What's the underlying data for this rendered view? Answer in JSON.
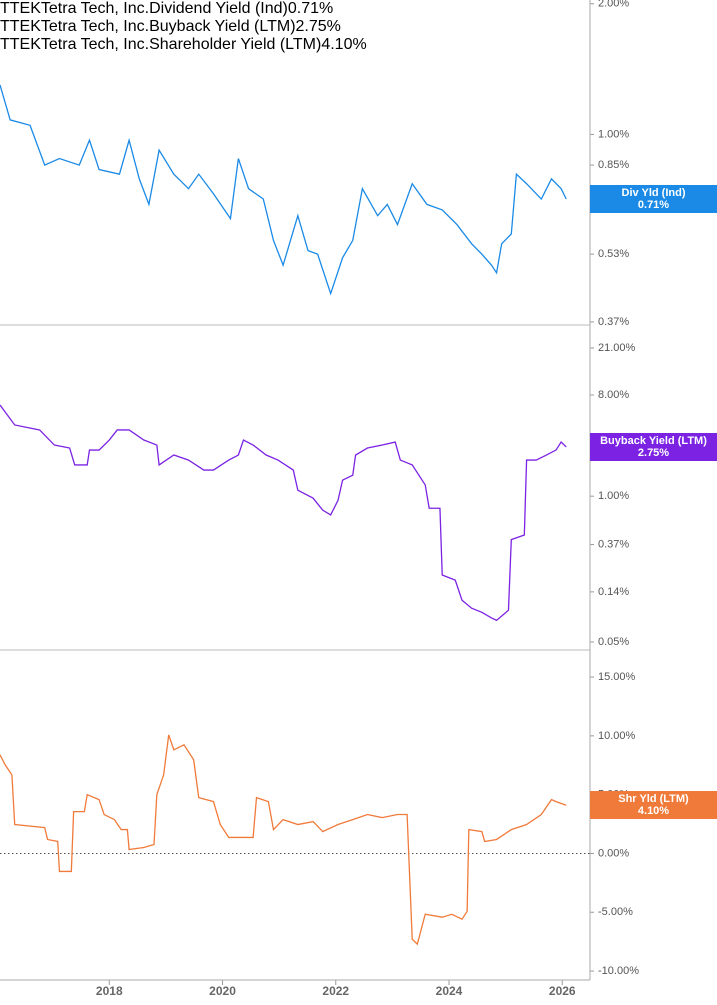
{
  "chart_data": [
    {
      "type": "line",
      "ticker": "TTEK",
      "company": "Tetra Tech, Inc.",
      "y_scale": "log",
      "xlim": [
        2016.07,
        2026.49
      ],
      "ylim": [
        0.364,
        2.04
      ],
      "yticks": [
        {
          "value": 2,
          "label": "2.00%"
        },
        {
          "value": 1,
          "label": "1.00%"
        },
        {
          "value": 0.85,
          "label": "0.85%"
        },
        {
          "value": 0.53,
          "label": "0.53%"
        },
        {
          "value": 0.37,
          "label": "0.37%"
        }
      ],
      "series": [
        {
          "name": "Dividend Yield (Ind)",
          "short_name": "Div Yld (Ind)",
          "color": "#1a8ae6",
          "latest": {
            "value": 0.71,
            "label": "0.71%"
          },
          "x": [
            2016.07,
            2016.25,
            2016.6,
            2016.86,
            2017.12,
            2017.47,
            2017.65,
            2017.82,
            2018.18,
            2018.35,
            2018.53,
            2018.7,
            2018.88,
            2019.14,
            2019.4,
            2019.58,
            2019.84,
            2020.14,
            2020.28,
            2020.46,
            2020.72,
            2020.9,
            2021.07,
            2021.33,
            2021.51,
            2021.68,
            2021.91,
            2022.12,
            2022.3,
            2022.47,
            2022.74,
            2022.91,
            2023.09,
            2023.35,
            2023.61,
            2023.88,
            2024.14,
            2024.4,
            2024.58,
            2024.75,
            2024.84,
            2024.93,
            2025.1,
            2025.19,
            2025.37,
            2025.63,
            2025.81,
            2025.98,
            2026.07
          ],
          "values": [
            1.3,
            1.08,
            1.05,
            0.85,
            0.88,
            0.85,
            0.97,
            0.83,
            0.81,
            0.97,
            0.79,
            0.69,
            0.92,
            0.81,
            0.75,
            0.81,
            0.73,
            0.64,
            0.88,
            0.75,
            0.71,
            0.57,
            0.5,
            0.65,
            0.54,
            0.53,
            0.43,
            0.52,
            0.57,
            0.75,
            0.65,
            0.69,
            0.62,
            0.77,
            0.69,
            0.67,
            0.62,
            0.56,
            0.53,
            0.5,
            0.48,
            0.56,
            0.59,
            0.81,
            0.77,
            0.71,
            0.79,
            0.75,
            0.71
          ]
        }
      ]
    },
    {
      "type": "line",
      "ticker": "TTEK",
      "company": "Tetra Tech, Inc.",
      "y_scale": "log",
      "xlim": [
        2016.07,
        2026.49
      ],
      "ylim": [
        0.0424,
        33.7
      ],
      "yticks": [
        {
          "value": 21,
          "label": "21.00%"
        },
        {
          "value": 8,
          "label": "8.00%"
        },
        {
          "value": 1,
          "label": "1.00%"
        },
        {
          "value": 0.37,
          "label": "0.37%"
        },
        {
          "value": 0.14,
          "label": "0.14%"
        },
        {
          "value": 0.05,
          "label": "0.05%"
        }
      ],
      "series": [
        {
          "name": "Buyback Yield (LTM)",
          "short_name": "Buyback Yield (LTM)",
          "color": "#7b22e3",
          "latest": {
            "value": 2.75,
            "label": "2.75%"
          },
          "x": [
            2016.07,
            2016.33,
            2016.77,
            2017.03,
            2017.3,
            2017.39,
            2017.61,
            2017.65,
            2017.82,
            2018.0,
            2018.14,
            2018.35,
            2018.61,
            2018.84,
            2018.88,
            2019.14,
            2019.4,
            2019.67,
            2019.84,
            2020.11,
            2020.28,
            2020.37,
            2020.54,
            2020.77,
            2020.98,
            2021.25,
            2021.33,
            2021.6,
            2021.77,
            2021.91,
            2022.04,
            2022.12,
            2022.3,
            2022.35,
            2022.56,
            2022.82,
            2023.05,
            2023.14,
            2023.35,
            2023.58,
            2023.65,
            2023.84,
            2023.88,
            2024.11,
            2024.23,
            2024.4,
            2024.58,
            2024.75,
            2024.84,
            2025.05,
            2025.1,
            2025.33,
            2025.37,
            2025.54,
            2025.72,
            2025.89,
            2025.98,
            2026.07
          ],
          "values": [
            6.51,
            4.32,
            3.9,
            2.86,
            2.69,
            1.9,
            1.9,
            2.58,
            2.58,
            3.17,
            3.9,
            3.9,
            3.17,
            2.86,
            1.9,
            2.33,
            2.1,
            1.71,
            1.71,
            2.1,
            2.33,
            3.17,
            2.86,
            2.33,
            2.1,
            1.71,
            1.13,
            0.96,
            0.75,
            0.68,
            0.92,
            1.39,
            1.54,
            2.33,
            2.69,
            2.86,
            3.04,
            2.1,
            1.9,
            1.26,
            0.78,
            0.78,
            0.198,
            0.178,
            0.118,
            0.1,
            0.092,
            0.082,
            0.078,
            0.096,
            0.41,
            0.45,
            2.1,
            2.1,
            2.33,
            2.58,
            3.04,
            2.75
          ]
        }
      ]
    },
    {
      "type": "line",
      "ticker": "TTEK",
      "company": "Tetra Tech, Inc.",
      "y_scale": "linear",
      "zero_line": true,
      "xlim": [
        2016.07,
        2026.49
      ],
      "ylim": [
        -10.76,
        17.3
      ],
      "yticks": [
        {
          "value": 15,
          "label": "15.00%"
        },
        {
          "value": 10,
          "label": "10.00%"
        },
        {
          "value": 5,
          "label": "5.00%"
        },
        {
          "value": 0,
          "label": "0.00%"
        },
        {
          "value": -5,
          "label": "-5.00%"
        },
        {
          "value": -10,
          "label": "-10.00%"
        }
      ],
      "xticks": [
        2018,
        2020,
        2022,
        2024,
        2026
      ],
      "series": [
        {
          "name": "Shareholder Yield (LTM)",
          "short_name": "Shr Yld (LTM)",
          "color": "#f07a3a",
          "latest": {
            "value": 4.1,
            "label": "4.10%"
          },
          "x": [
            2016.07,
            2016.16,
            2016.28,
            2016.33,
            2016.86,
            2016.91,
            2017.09,
            2017.12,
            2017.33,
            2017.37,
            2017.56,
            2017.61,
            2017.82,
            2017.91,
            2018.09,
            2018.21,
            2018.32,
            2018.35,
            2018.61,
            2018.79,
            2018.84,
            2018.96,
            2019.05,
            2019.14,
            2019.32,
            2019.49,
            2019.58,
            2019.84,
            2019.96,
            2020.11,
            2020.54,
            2020.6,
            2020.81,
            2020.9,
            2021.07,
            2021.33,
            2021.6,
            2021.77,
            2022.04,
            2022.3,
            2022.56,
            2022.82,
            2023.09,
            2023.26,
            2023.35,
            2023.44,
            2023.58,
            2023.88,
            2024.05,
            2024.23,
            2024.32,
            2024.35,
            2024.58,
            2024.63,
            2024.84,
            2025.1,
            2025.37,
            2025.63,
            2025.81,
            2025.89,
            2026.07
          ],
          "values": [
            8.39,
            7.54,
            6.69,
            2.46,
            2.2,
            1.19,
            1.02,
            -1.53,
            -1.53,
            3.56,
            3.56,
            5.0,
            4.58,
            3.31,
            2.88,
            2.03,
            2.03,
            0.34,
            0.51,
            0.76,
            5.0,
            6.69,
            10.08,
            8.81,
            9.24,
            7.97,
            4.75,
            4.41,
            2.46,
            1.36,
            1.36,
            4.75,
            4.41,
            2.03,
            2.88,
            2.46,
            2.71,
            1.86,
            2.46,
            2.88,
            3.31,
            3.05,
            3.31,
            3.31,
            -7.29,
            -7.71,
            -5.17,
            -5.42,
            -5.17,
            -5.59,
            -4.92,
            2.03,
            1.86,
            1.02,
            1.19,
            2.03,
            2.46,
            3.31,
            4.58,
            4.41,
            4.1
          ]
        }
      ]
    }
  ]
}
